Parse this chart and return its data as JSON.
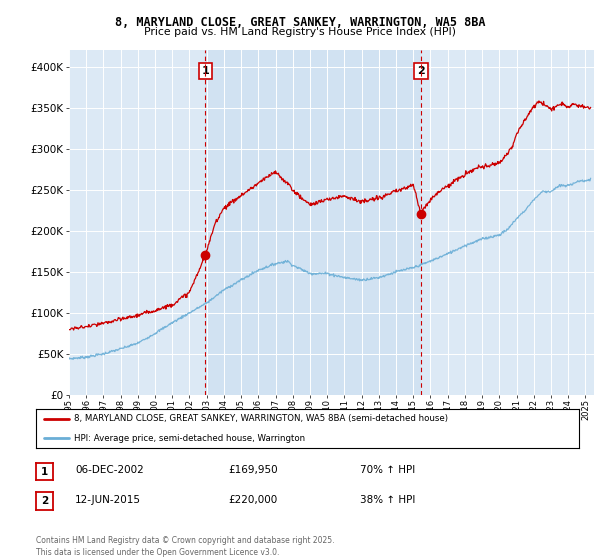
{
  "title_line1": "8, MARYLAND CLOSE, GREAT SANKEY, WARRINGTON, WA5 8BA",
  "title_line2": "Price paid vs. HM Land Registry's House Price Index (HPI)",
  "ylim": [
    0,
    420000
  ],
  "yticks": [
    0,
    50000,
    100000,
    150000,
    200000,
    250000,
    300000,
    350000,
    400000
  ],
  "ytick_labels": [
    "£0",
    "£50K",
    "£100K",
    "£150K",
    "£200K",
    "£250K",
    "£300K",
    "£350K",
    "£400K"
  ],
  "plot_bg_color": "#dce9f5",
  "stripe_bg_color": "#c8dcf0",
  "fig_bg_color": "#ffffff",
  "hpi_line_color": "#6aaed6",
  "price_line_color": "#cc0000",
  "vline_color": "#cc0000",
  "marker1_x": 2002.92,
  "marker1_y": 169950,
  "marker2_x": 2015.45,
  "marker2_y": 220000,
  "marker1_label": "1",
  "marker2_label": "2",
  "marker1_date": "06-DEC-2002",
  "marker1_price": "£169,950",
  "marker1_hpi": "70% ↑ HPI",
  "marker2_date": "12-JUN-2015",
  "marker2_price": "£220,000",
  "marker2_hpi": "38% ↑ HPI",
  "legend_label1": "8, MARYLAND CLOSE, GREAT SANKEY, WARRINGTON, WA5 8BA (semi-detached house)",
  "legend_label2": "HPI: Average price, semi-detached house, Warrington",
  "footer": "Contains HM Land Registry data © Crown copyright and database right 2025.\nThis data is licensed under the Open Government Licence v3.0.",
  "xmin": 1995,
  "xmax": 2025.5
}
